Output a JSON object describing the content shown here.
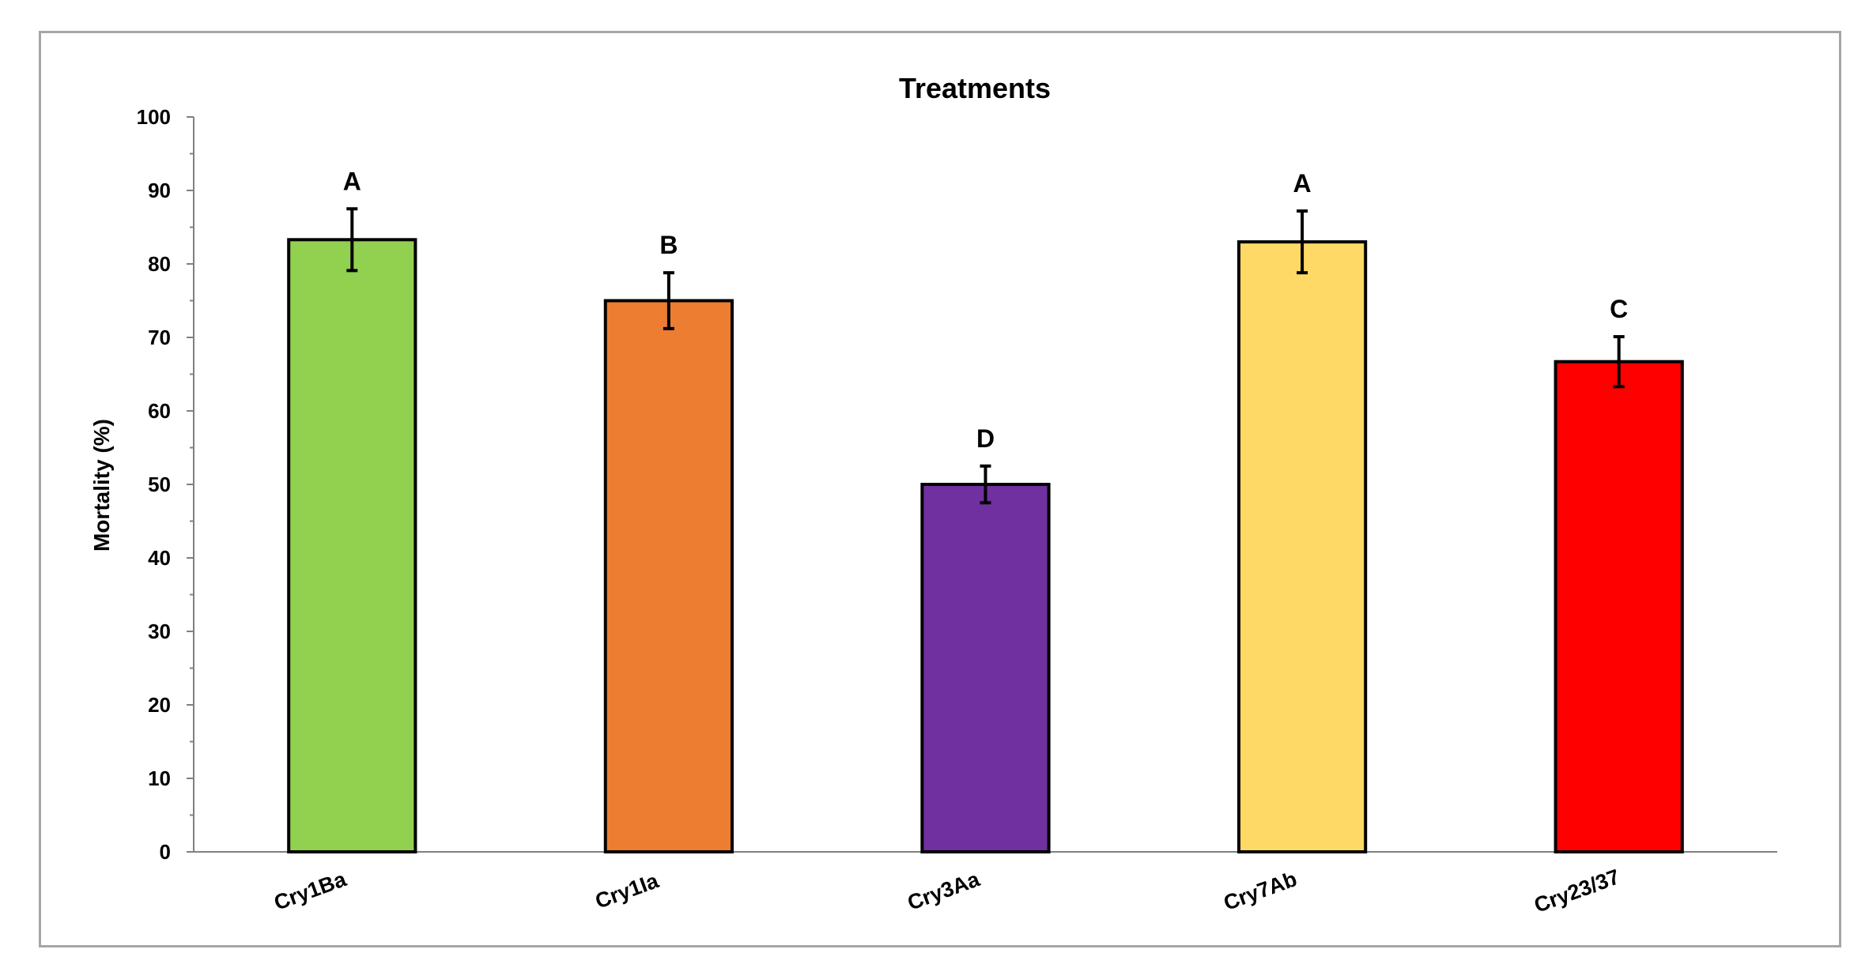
{
  "chart_data": {
    "type": "bar",
    "title": "Treatments",
    "xlabel": "",
    "ylabel": "Mortality (%)",
    "ylim": [
      0,
      100
    ],
    "yticks": [
      0,
      10,
      20,
      30,
      40,
      50,
      60,
      70,
      80,
      90,
      100
    ],
    "categories": [
      "Cry1Ba",
      "Cry1Ia",
      "Cry3Aa",
      "Cry7Ab",
      "Cry23/37"
    ],
    "values": [
      83.3,
      75.0,
      50.0,
      83.0,
      66.7
    ],
    "errors": [
      4.2,
      3.8,
      2.5,
      4.2,
      3.4
    ],
    "significance_letters": [
      "A",
      "B",
      "D",
      "A",
      "C"
    ],
    "colors": [
      "#92d050",
      "#ed7d31",
      "#7030a0",
      "#ffd966",
      "#ff0000"
    ],
    "bar_outline": "#000000",
    "grid": false,
    "legend": "none"
  }
}
